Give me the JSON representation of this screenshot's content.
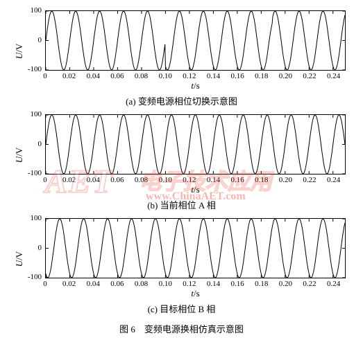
{
  "global": {
    "background_color": "#ffffff",
    "axis_line_color": "#000000",
    "wave_color": "#000000",
    "font_family": "Times New Roman / SimSun",
    "ylabel": "U/V",
    "xlabel": "t/s",
    "main_caption": "图 6　变频电源换相仿真示意图"
  },
  "panels": [
    {
      "id": "a",
      "subcap": "(a) 变频电源相位切换示意图",
      "ylim": [
        -100,
        100
      ],
      "yticks": [
        -100,
        0,
        100
      ],
      "xlim": [
        0,
        0.25
      ],
      "xticks": [
        0,
        0.02,
        0.04,
        0.06,
        0.08,
        0.1,
        0.12,
        0.14,
        0.16,
        0.18,
        0.2,
        0.22,
        0.24
      ],
      "wave": {
        "type": "sine",
        "amp": 100,
        "freq": 50,
        "phase": 0,
        "switch_t": 0.1,
        "phase2": -2.0944,
        "glitch_t": 0.188
      }
    },
    {
      "id": "b",
      "subcap": "(b) 当前相位 A 相",
      "ylim": [
        -100,
        100
      ],
      "yticks": [
        -100,
        0,
        100
      ],
      "xlim": [
        0,
        0.25
      ],
      "xticks": [
        0,
        0.02,
        0.04,
        0.06,
        0.08,
        0.1,
        0.12,
        0.14,
        0.16,
        0.18,
        0.2,
        0.22,
        0.24
      ],
      "wave": {
        "type": "sine",
        "amp": 100,
        "freq": 50,
        "phase": 0
      }
    },
    {
      "id": "c",
      "subcap": "(c) 目标相位 B 相",
      "ylim": [
        -100,
        100
      ],
      "yticks": [
        -100,
        0,
        100
      ],
      "xlim": [
        0,
        0.25
      ],
      "xticks": [
        0,
        0.02,
        0.04,
        0.06,
        0.08,
        0.1,
        0.12,
        0.14,
        0.16,
        0.18,
        0.2,
        0.22,
        0.24
      ],
      "wave": {
        "type": "sine",
        "amp": 100,
        "freq": 50,
        "phase": -2.0944
      }
    }
  ],
  "watermark": {
    "text_big": "AET",
    "text_cn": "电子技术应用",
    "text_url": "www.ChinaAET.com",
    "color_outline": "#e84c3d",
    "color_fill": "#ffffff"
  }
}
